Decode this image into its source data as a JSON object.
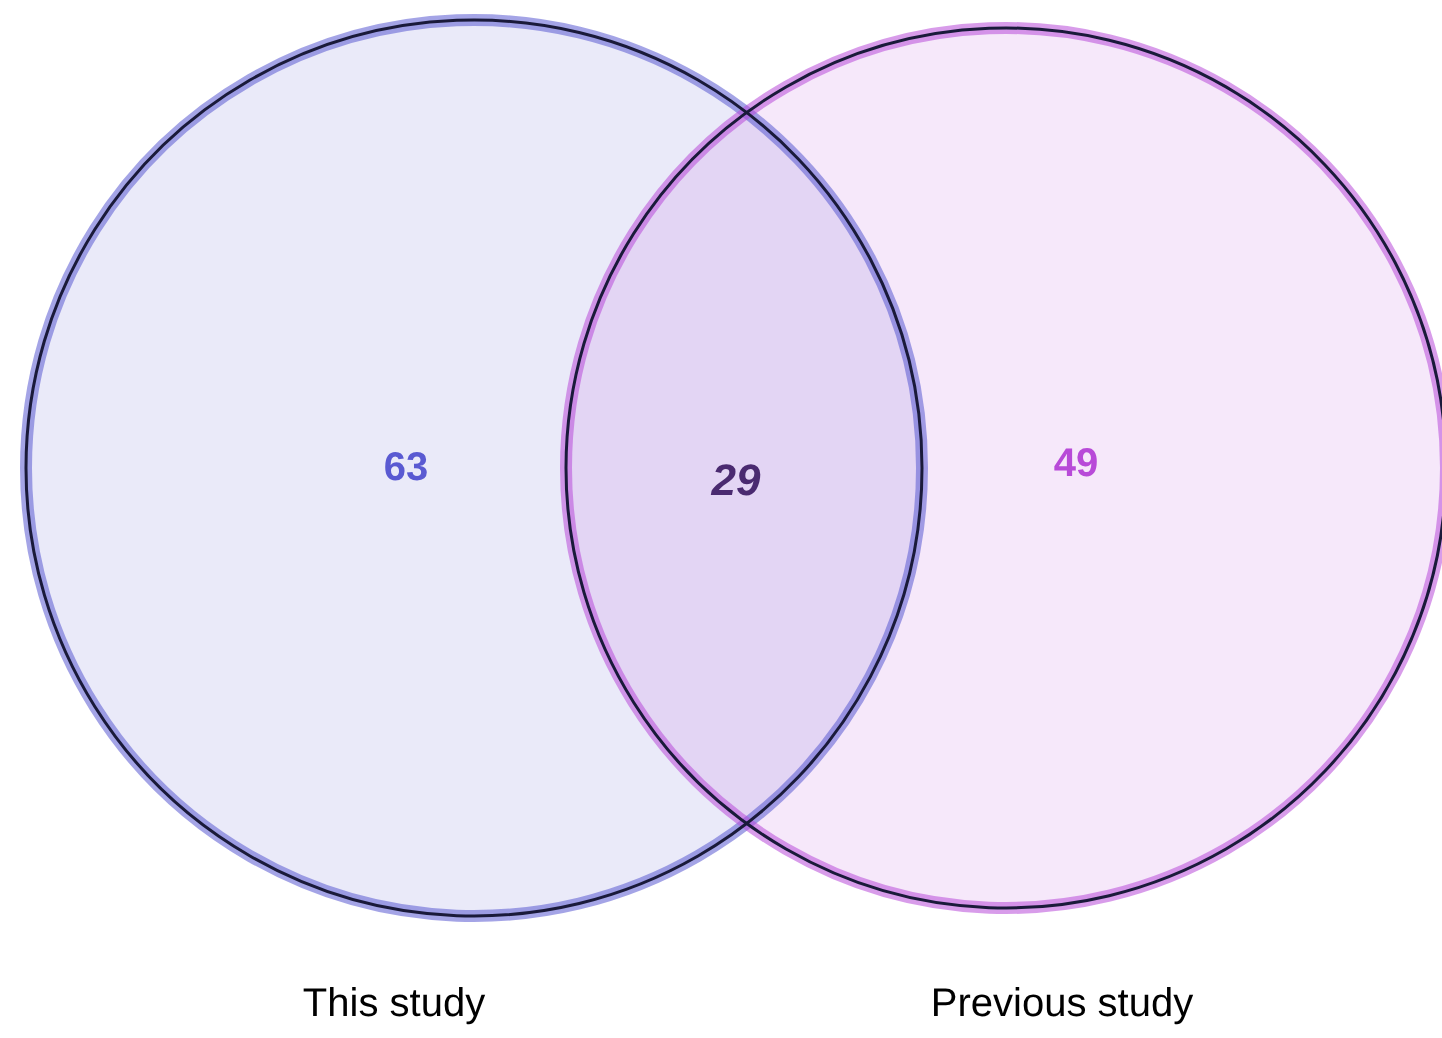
{
  "chart_data": {
    "type": "other",
    "categories": [
      "This study",
      null,
      "Previous study"
    ],
    "values": [
      63,
      29,
      49
    ],
    "data_labels": true,
    "colors": [
      "#5a5ad2",
      "#4a2a70",
      "#b84ad8"
    ]
  }
}
